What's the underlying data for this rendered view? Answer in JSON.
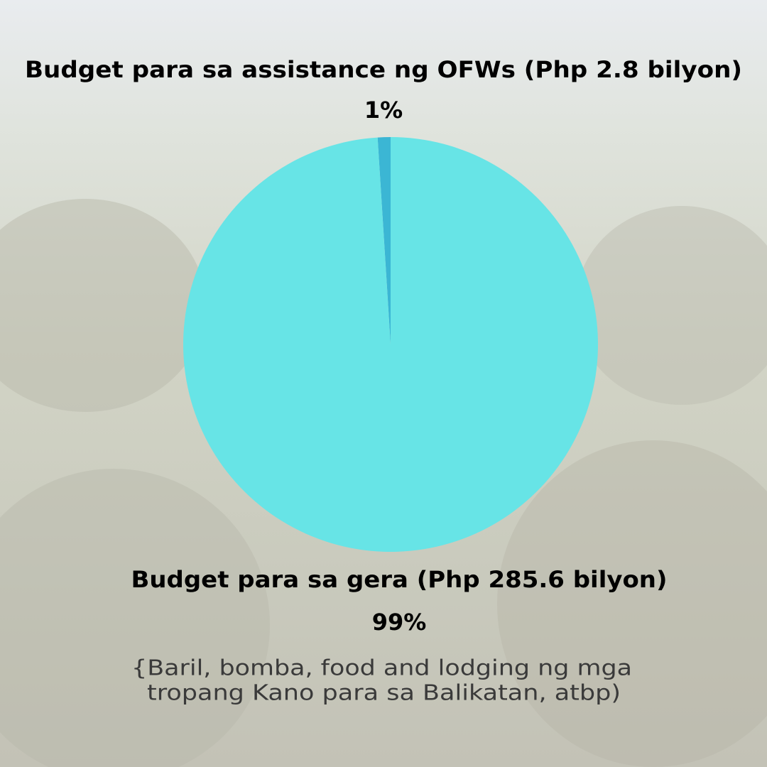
{
  "chart_data": {
    "type": "pie",
    "categories": [
      "Budget para sa assistance ng OFWs (Php 2.8 bilyon)",
      "Budget para sa gera (Php 285.6 bilyon)"
    ],
    "values": [
      1,
      99
    ],
    "value_labels": [
      "1%",
      "99%"
    ],
    "colors": [
      "#3bb6d4",
      "#67e4e6"
    ],
    "note": [
      "{Baril, bomba, food and lodging ng mga",
      "tropang Kano para sa Balikatan, atbp)"
    ]
  }
}
